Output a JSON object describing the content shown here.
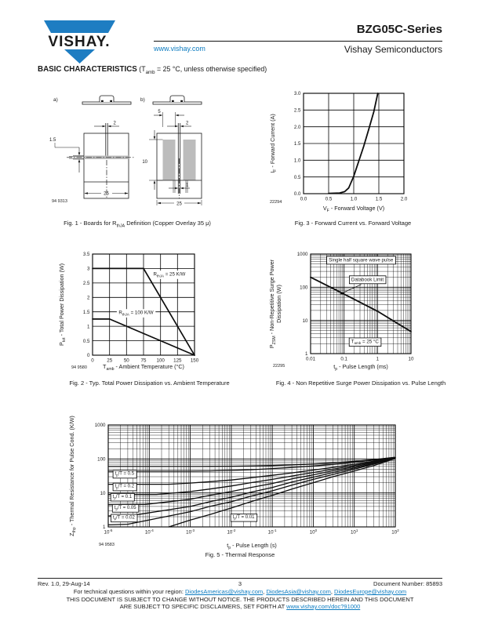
{
  "colors": {
    "link_blue": "#0c7bc0",
    "logo_blue": "#1e7dc2",
    "copper_gray": "#bcbcbc"
  },
  "header": {
    "logo_text": "VISHAY.",
    "website": "www.vishay.com",
    "part_series": "BZG05C-Series",
    "division": "Vishay Semiconductors"
  },
  "section": {
    "title": "BASIC CHARACTERISTICS",
    "condition": "(T~amb~ = 25 °C, unless otherwise specified)"
  },
  "fig1": {
    "caption": "Fig. 1 - Boards for R~thJA~ Definition (Copper Overlay 35 μ)",
    "code": "94 9313",
    "board_a_label": "a)",
    "board_b_label": "b)",
    "dim_a_lead_spacing": "2",
    "dim_a_overlay_width": "1.5",
    "dim_a_board_width": "25",
    "dim_b_pad_width": "5",
    "dim_b_lead_spacing": "2",
    "dim_b_pad_height": "10",
    "dim_b_lead_width": "1",
    "dim_b_board_width": "25"
  },
  "chart_data": [
    {
      "id": "fig3",
      "type": "line",
      "caption": "Fig. 3 - Forward Current vs. Forward Voltage",
      "code": "22294",
      "xlabel": "V~F~ - Forward Voltage (V)",
      "ylabel": [
        "I~F~ - Forward Current (A)"
      ],
      "xscale": "linear",
      "yscale": "linear",
      "xlim": [
        0,
        2
      ],
      "ylim": [
        0,
        3
      ],
      "xticks": [
        {
          "v": 0,
          "label": "0.0"
        },
        {
          "v": 0.5,
          "label": "0.5"
        },
        {
          "v": 1,
          "label": "1.0"
        },
        {
          "v": 1.5,
          "label": "1.5"
        },
        {
          "v": 2,
          "label": "2.0"
        }
      ],
      "yticks": [
        {
          "v": 0,
          "label": "0.0"
        },
        {
          "v": 0.5,
          "label": "0.5"
        },
        {
          "v": 1,
          "label": "1.0"
        },
        {
          "v": 1.5,
          "label": "1.5"
        },
        {
          "v": 2,
          "label": "2.0"
        },
        {
          "v": 2.5,
          "label": "2.5"
        },
        {
          "v": 3,
          "label": "3.0"
        }
      ],
      "series": [
        {
          "name": "forward-current",
          "points": [
            [
              0.5,
              0.01
            ],
            [
              0.72,
              0.02
            ],
            [
              0.82,
              0.06
            ],
            [
              0.9,
              0.17
            ],
            [
              1.0,
              0.52
            ],
            [
              1.1,
              0.97
            ],
            [
              1.2,
              1.42
            ],
            [
              1.3,
              1.93
            ],
            [
              1.4,
              2.45
            ],
            [
              1.48,
              3.0
            ]
          ]
        }
      ],
      "annotations": []
    },
    {
      "id": "fig2",
      "type": "line",
      "caption": "Fig. 2 - Typ. Total Power Dissipation vs. Ambient Temperature",
      "code": "94 9580",
      "xlabel": "T~amb~ - Ambient Temperature (°C)",
      "ylabel": [
        "P~tot~ - Total Power Dissipation (W)"
      ],
      "xscale": "linear",
      "yscale": "linear",
      "xlim": [
        0,
        150
      ],
      "ylim": [
        0,
        3.5
      ],
      "xticks": [
        {
          "v": 0,
          "label": "0"
        },
        {
          "v": 25,
          "label": "25"
        },
        {
          "v": 50,
          "label": "50"
        },
        {
          "v": 75,
          "label": "75"
        },
        {
          "v": 100,
          "label": "100"
        },
        {
          "v": 125,
          "label": "125"
        },
        {
          "v": 150,
          "label": "150"
        }
      ],
      "yticks": [
        {
          "v": 0,
          "label": "0"
        },
        {
          "v": 0.5,
          "label": "0.5"
        },
        {
          "v": 1,
          "label": "1"
        },
        {
          "v": 1.5,
          "label": "1.5"
        },
        {
          "v": 2,
          "label": "2"
        },
        {
          "v": 2.5,
          "label": "2.5"
        },
        {
          "v": 3,
          "label": "3"
        },
        {
          "v": 3.5,
          "label": "3.5"
        }
      ],
      "series": [
        {
          "name": "RthJA-25KW",
          "points": [
            [
              0,
              3
            ],
            [
              75,
              3
            ],
            [
              150,
              0
            ]
          ]
        },
        {
          "name": "RthJA-100KW",
          "points": [
            [
              0,
              1.25
            ],
            [
              25,
              1.25
            ],
            [
              150,
              0
            ]
          ]
        }
      ],
      "annotations": [
        {
          "text": "R~thJA~ = 25 K/W",
          "x": 113,
          "y": 2.75,
          "boxed": false
        },
        {
          "text": "R~thJA~ = 100 K/W",
          "x": 64,
          "y": 1.42,
          "boxed": false
        }
      ]
    },
    {
      "id": "fig4",
      "type": "line",
      "caption": "Fig. 4 - Non Repetitive Surge Power Dissipation vs. Pulse Length",
      "code": "22295",
      "xlabel": "t~p~ - Pulse Length (ms)",
      "ylabel": [
        "P~ZSM~ - Non-Repetitive Surge Power",
        "Dissipation (W)"
      ],
      "xscale": "log",
      "yscale": "log",
      "xlim": [
        0.01,
        10
      ],
      "ylim": [
        1,
        1000
      ],
      "xticks": [
        {
          "v": 0.01,
          "label": "0.01"
        },
        {
          "v": 0.1,
          "label": "0.1"
        },
        {
          "v": 1,
          "label": "1"
        },
        {
          "v": 10,
          "label": "10"
        }
      ],
      "yticks": [
        {
          "v": 1,
          "label": "1"
        },
        {
          "v": 10,
          "label": "10"
        },
        {
          "v": 100,
          "label": "100"
        },
        {
          "v": 1000,
          "label": "1000"
        }
      ],
      "series": [
        {
          "name": "databook-limit",
          "points": [
            [
              0.01,
              200
            ],
            [
              0.1,
              62
            ],
            [
              1,
              19
            ],
            [
              10,
              4.6
            ]
          ]
        }
      ],
      "annotations": [
        {
          "text": "Single half square wave pulse",
          "x": 0.32,
          "y": 600,
          "boxed": true
        },
        {
          "text": "Databook Limit",
          "x": 0.5,
          "y": 155,
          "boxed": true,
          "arrow_to": [
            0.075,
            62
          ]
        },
        {
          "text": "T~amb~ = 25 °C",
          "x": 0.42,
          "y": 2.1,
          "boxed": true
        }
      ]
    },
    {
      "id": "fig5",
      "type": "line",
      "caption": "Fig. 5 - Thermal Response",
      "code": "94 9583",
      "xlabel": "t~p~ - Pulse Length (s)",
      "ylabel": [
        "Z~thp~ - Thermal Resistance for Pulse Cond. (K/W)"
      ],
      "xscale": "log",
      "yscale": "log",
      "xlim": [
        1e-05,
        100
      ],
      "ylim": [
        1,
        1000
      ],
      "xticks": [
        {
          "v": 1e-05,
          "label": "10^-5^"
        },
        {
          "v": 0.0001,
          "label": "10^-4^"
        },
        {
          "v": 0.001,
          "label": "10^-3^"
        },
        {
          "v": 0.01,
          "label": "10^-2^"
        },
        {
          "v": 0.1,
          "label": "10^-1^"
        },
        {
          "v": 1,
          "label": "10^0^"
        },
        {
          "v": 10,
          "label": "10^1^"
        },
        {
          "v": 100,
          "label": "10^2^"
        }
      ],
      "yticks": [
        {
          "v": 1,
          "label": "1"
        },
        {
          "v": 10,
          "label": "10"
        },
        {
          "v": 100,
          "label": "100"
        },
        {
          "v": 1000,
          "label": "1000"
        }
      ],
      "series": [
        {
          "name": "tp-T-top",
          "points": [
            [
              1e-05,
              60
            ],
            [
              0.001,
              60
            ],
            [
              0.003,
              60.5
            ],
            [
              0.01,
              61
            ],
            [
              0.03,
              62
            ],
            [
              0.1,
              64
            ],
            [
              0.3,
              67
            ],
            [
              1,
              71
            ],
            [
              3,
              77
            ],
            [
              10,
              85
            ],
            [
              30,
              96
            ],
            [
              100,
              112
            ]
          ]
        },
        {
          "name": "tp-T-0.5",
          "points": [
            [
              1e-05,
              44
            ],
            [
              0.001,
              44
            ],
            [
              0.003,
              44.5
            ],
            [
              0.01,
              46
            ],
            [
              0.03,
              48
            ],
            [
              0.1,
              52
            ],
            [
              0.3,
              56
            ],
            [
              1,
              62
            ],
            [
              3,
              69
            ],
            [
              10,
              80
            ],
            [
              30,
              92
            ],
            [
              100,
              111
            ]
          ]
        },
        {
          "name": "tp-T-0.2",
          "points": [
            [
              1e-05,
              18
            ],
            [
              0.0003,
              18
            ],
            [
              0.001,
              19.5
            ],
            [
              0.003,
              21.5
            ],
            [
              0.01,
              24
            ],
            [
              0.03,
              28
            ],
            [
              0.1,
              33
            ],
            [
              0.3,
              39
            ],
            [
              1,
              47
            ],
            [
              3,
              56
            ],
            [
              10,
              70
            ],
            [
              30,
              86
            ],
            [
              100,
              110
            ]
          ]
        },
        {
          "name": "tp-T-0.1",
          "points": [
            [
              1e-05,
              9
            ],
            [
              0.00015,
              9
            ],
            [
              0.001,
              11
            ],
            [
              0.003,
              13
            ],
            [
              0.01,
              16
            ],
            [
              0.03,
              20
            ],
            [
              0.1,
              25
            ],
            [
              0.3,
              31.5
            ],
            [
              1,
              40
            ],
            [
              3,
              50
            ],
            [
              10,
              64
            ],
            [
              30,
              82
            ],
            [
              100,
              109
            ]
          ]
        },
        {
          "name": "tp-T-0.05",
          "points": [
            [
              1e-05,
              4.5
            ],
            [
              8e-05,
              4.6
            ],
            [
              0.001,
              6.5
            ],
            [
              0.003,
              8.5
            ],
            [
              0.01,
              11
            ],
            [
              0.03,
              14.5
            ],
            [
              0.1,
              19
            ],
            [
              0.3,
              26
            ],
            [
              1,
              34
            ],
            [
              3,
              45
            ],
            [
              10,
              59
            ],
            [
              30,
              78
            ],
            [
              100,
              108
            ]
          ]
        },
        {
          "name": "tp-T-0.02",
          "points": [
            [
              1e-05,
              2.1
            ],
            [
              4e-05,
              2.2
            ],
            [
              0.001,
              4
            ],
            [
              0.003,
              5.5
            ],
            [
              0.01,
              7.5
            ],
            [
              0.03,
              10.5
            ],
            [
              0.1,
              14.5
            ],
            [
              0.3,
              21
            ],
            [
              1,
              29
            ],
            [
              3,
              40
            ],
            [
              10,
              54
            ],
            [
              30,
              74
            ],
            [
              100,
              107
            ]
          ]
        },
        {
          "name": "tp-T-0.01",
          "points": [
            [
              1e-05,
              1.15
            ],
            [
              3e-05,
              1.2
            ],
            [
              0.001,
              2.8
            ],
            [
              0.003,
              4
            ],
            [
              0.01,
              5.5
            ],
            [
              0.03,
              8
            ],
            [
              0.1,
              11.5
            ],
            [
              0.3,
              17
            ],
            [
              1,
              25
            ],
            [
              3,
              35
            ],
            [
              10,
              50
            ],
            [
              30,
              70
            ],
            [
              100,
              106
            ]
          ]
        },
        {
          "name": "single-pulse",
          "points": [
            [
              0.0003,
              1
            ],
            [
              0.001,
              1.6
            ],
            [
              0.003,
              2.3
            ],
            [
              0.01,
              3.6
            ],
            [
              0.03,
              5.5
            ],
            [
              0.1,
              8.5
            ],
            [
              0.3,
              13
            ],
            [
              1,
              20
            ],
            [
              3,
              30
            ],
            [
              10,
              44
            ],
            [
              30,
              64
            ],
            [
              100,
              103
            ]
          ]
        }
      ],
      "annotations": [
        {
          "text": "t~p~/T = 0.5",
          "x": 2.5e-05,
          "y": 34,
          "boxed": true
        },
        {
          "text": "t~p~/T = 0.2",
          "x": 2.5e-05,
          "y": 14.5,
          "boxed": true
        },
        {
          "text": "t~p~/T = 0.1",
          "x": 2.2e-05,
          "y": 7.2,
          "boxed": true
        },
        {
          "text": "t~p~/T = 0.05",
          "x": 2.6e-05,
          "y": 3.4,
          "boxed": true
        },
        {
          "text": "t~p~/T = 0.02",
          "x": 2.4e-05,
          "y": 1.75,
          "boxed": true
        },
        {
          "text": "t~p~/T = 0.01",
          "x": 0.02,
          "y": 1.8,
          "boxed": true
        }
      ]
    }
  ],
  "footer": {
    "revision": "Rev. 1.0, 29-Aug-14",
    "page_number": "3",
    "doc_number": "Document Number: 85893",
    "tech_prefix": "For technical questions within your region: ",
    "emails": [
      "DiodesAmericas@vishay.com",
      "DiodesAsia@vishay.com",
      "DiodesEurope@vishay.com"
    ],
    "email_sep": ", ",
    "disclaimer_line1": "THIS DOCUMENT IS SUBJECT TO CHANGE WITHOUT NOTICE. THE PRODUCTS DESCRIBED HEREIN AND THIS DOCUMENT",
    "disclaimer_line2_prefix": "ARE SUBJECT TO SPECIFIC DISCLAIMERS, SET FORTH AT ",
    "disclaimer_link": "www.vishay.com/doc?91000"
  }
}
